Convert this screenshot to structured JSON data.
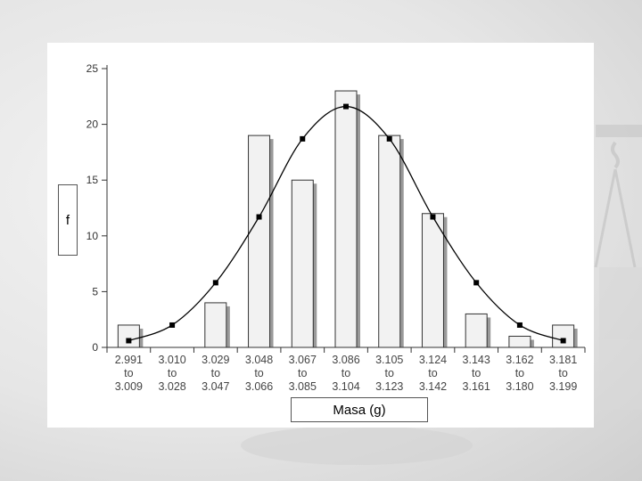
{
  "chart_data": {
    "type": "bar",
    "categories": [
      [
        "2.991",
        "to",
        "3.009"
      ],
      [
        "3.010",
        "to",
        "3.028"
      ],
      [
        "3.029",
        "to",
        "3.047"
      ],
      [
        "3.048",
        "to",
        "3.066"
      ],
      [
        "3.067",
        "to",
        "3.085"
      ],
      [
        "3.086",
        "to",
        "3.104"
      ],
      [
        "3.105",
        "to",
        "3.123"
      ],
      [
        "3.124",
        "to",
        "3.142"
      ],
      [
        "3.143",
        "to",
        "3.161"
      ],
      [
        "3.162",
        "to",
        "3.180"
      ],
      [
        "3.181",
        "to",
        "3.199"
      ]
    ],
    "values": [
      2,
      0,
      4,
      19,
      15,
      23,
      19,
      12,
      3,
      1,
      2
    ],
    "fit_curve_points": [
      0.6,
      2.0,
      5.8,
      11.7,
      18.7,
      21.6,
      18.7,
      11.7,
      5.8,
      2.0,
      0.6
    ],
    "ylim": [
      0,
      25
    ],
    "yticks": [
      0,
      5,
      10,
      15,
      20,
      25
    ],
    "xlabel": "Masa (g)",
    "ylabel": "f",
    "grid": false,
    "colors": {
      "bar_fill": "#f2f2f2",
      "bar_stroke": "#333333",
      "bar_shadow": "#9a9a9a",
      "curve": "#000000"
    }
  }
}
